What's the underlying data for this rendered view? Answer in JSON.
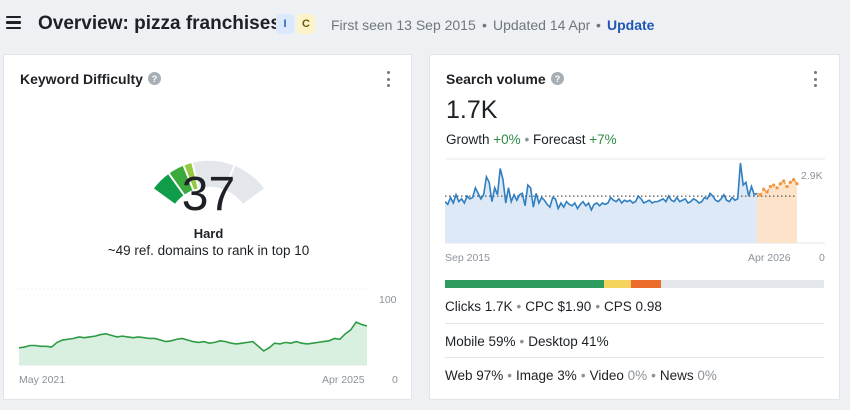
{
  "header": {
    "title": "Overview: pizza franchises",
    "intent_badges": [
      "I",
      "C"
    ],
    "first_seen": "First seen 13 Sep 2015",
    "updated": "Updated 14 Apr",
    "update_link": "Update",
    "separator": "•"
  },
  "keyword_difficulty": {
    "title": "Keyword Difficulty",
    "help": "?",
    "value": "37",
    "value_numeric": 37,
    "label": "Hard",
    "subtitle": "~49 ref. domains to rank in top 10",
    "colors": [
      "#0f9d4a",
      "#3aaa3c",
      "#94c940",
      "#e3e6ea"
    ],
    "history": {
      "x_start": "May 2021",
      "x_end": "Apr 2025",
      "y_max": "100",
      "y_min": "0",
      "values": [
        22,
        23,
        25,
        25,
        24,
        24,
        23,
        29,
        32,
        33,
        34,
        36,
        35,
        36,
        37,
        39,
        40,
        38,
        36,
        37,
        36,
        35,
        36,
        35,
        34,
        34,
        32,
        30,
        31,
        33,
        34,
        32,
        30,
        29,
        30,
        28,
        29,
        31,
        30,
        28,
        27,
        28,
        29,
        30,
        24,
        18,
        22,
        28,
        27,
        29,
        28,
        30,
        28,
        27,
        28,
        29,
        30,
        31,
        34,
        33,
        40,
        45,
        55,
        52,
        50
      ]
    }
  },
  "search_volume": {
    "title": "Search volume",
    "help": "?",
    "value": "1.7K",
    "growth_label": "Growth",
    "growth_value": "+0%",
    "forecast_label": "Forecast",
    "forecast_value": "+7%",
    "separator": "•",
    "chart": {
      "x_start": "Sep 2015",
      "x_end": "Apr 2026",
      "y_top": "2.9K",
      "y_bottom": "0",
      "line_color": "#2f7fc1",
      "forecast_color": "#f0963e",
      "average": 1700,
      "y_max": 2900,
      "values": [
        1500,
        1400,
        1650,
        1450,
        1750,
        1500,
        1600,
        1450,
        1700,
        1600,
        1650,
        2000,
        1800,
        1600,
        1750,
        2400,
        2200,
        1500,
        2000,
        1750,
        2700,
        2300,
        1450,
        2000,
        1500,
        1750,
        1550,
        1750,
        1800,
        1350,
        2100,
        2000,
        1300,
        1800,
        1450,
        1650,
        1550,
        1400,
        1300,
        1650,
        1600,
        1250,
        1450,
        1300,
        1500,
        1400,
        1350,
        1450,
        1250,
        1400,
        1500,
        1350,
        1450,
        1200,
        1400,
        1450,
        1350,
        1450,
        1400,
        1450,
        1650,
        1550,
        1500,
        1600,
        1450,
        1550,
        1500,
        1550,
        1450,
        1500,
        1700,
        1600,
        1450,
        1500,
        1550,
        1450,
        1500,
        1500,
        1550,
        1600,
        1500,
        1700,
        1550,
        1500,
        1650,
        1500,
        1550,
        1600,
        1450,
        1500,
        1600,
        1550,
        1450,
        1500,
        1650,
        1600,
        1800,
        1700,
        1550,
        1500,
        1600,
        1750,
        1550,
        1500,
        1650,
        1550,
        1600,
        2900,
        2100,
        2200,
        1700,
        2050,
        1750,
        1800
      ],
      "forecast": [
        1750,
        1950,
        1850,
        2050,
        2100,
        2000,
        2150,
        2250,
        2050,
        2200,
        2300,
        2150
      ]
    },
    "split_bar": [
      {
        "name": "clicks",
        "fraction": 0.42,
        "color": "#2e9b5f"
      },
      {
        "name": "cpc",
        "fraction": 0.07,
        "color": "#f4d35e"
      },
      {
        "name": "cps",
        "fraction": 0.08,
        "color": "#ec6d2b"
      },
      {
        "name": "no-clicks",
        "fraction": 0.43,
        "color": "#e3e6ea"
      }
    ],
    "clicks": "Clicks 1.7K",
    "cpc": "CPC $1.90",
    "cps": "CPS 0.98",
    "mobile": "Mobile 59%",
    "desktop": "Desktop 41%",
    "web": "Web 97%",
    "image": "Image 3%",
    "video_label": "Video",
    "video_value": "0%",
    "news_label": "News",
    "news_value": "0%"
  }
}
